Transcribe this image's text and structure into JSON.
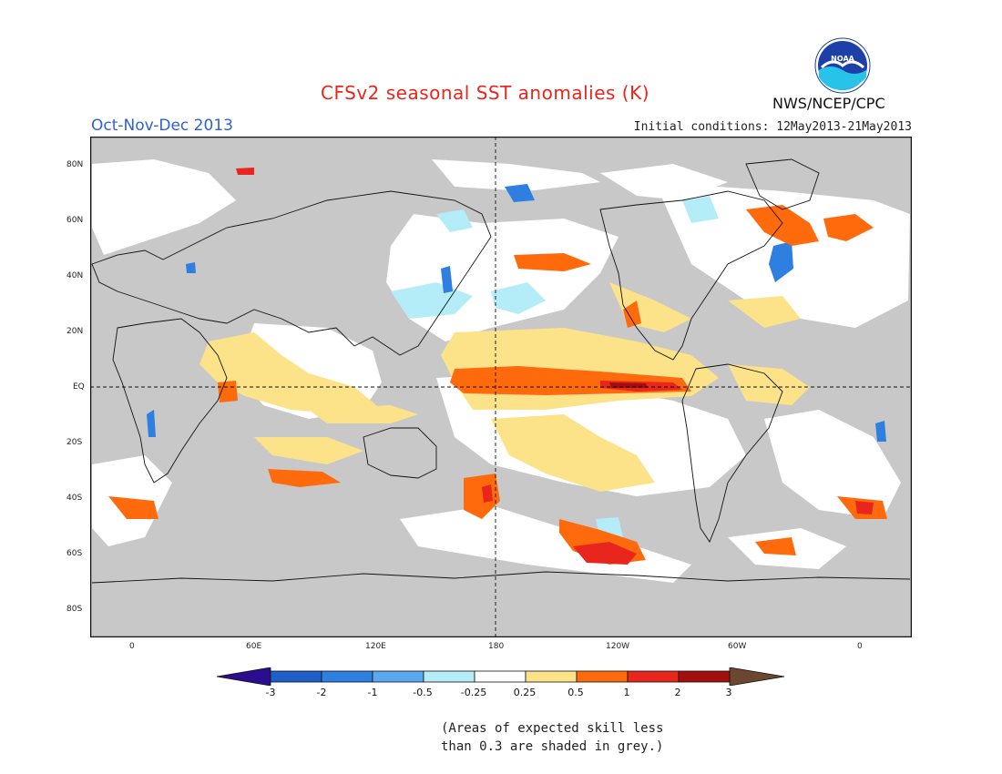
{
  "title": "CFSv2 seasonal SST anomalies (K)",
  "season": "Oct-Nov-Dec 2013",
  "initial_conditions": "Initial conditions: 12May2013-21May2013",
  "agency": "NWS/NCEP/CPC",
  "logo_text": "NOAA",
  "lat_labels": [
    "80N",
    "60N",
    "40N",
    "20N",
    "EQ",
    "20S",
    "40S",
    "60S",
    "80S"
  ],
  "lon_labels": [
    "0",
    "60E",
    "120E",
    "180",
    "120W",
    "60W",
    "0"
  ],
  "colorbar": {
    "ticks": [
      "-3",
      "-2",
      "-1",
      "-0.5",
      "-0.25",
      "0.25",
      "0.5",
      "1",
      "2",
      "3"
    ],
    "colors": [
      "#2b0e8f",
      "#1f5fc8",
      "#2f7fe0",
      "#5aa8ee",
      "#b4ecf7",
      "#ffffff",
      "#fce38a",
      "#ff6a0d",
      "#e8261d",
      "#a30f0f",
      "#6b4630"
    ]
  },
  "skill_mask_color": "#c8c8c8",
  "note_line1": "(Areas of expected skill less",
  "note_line2": "than 0.3 are shaded in grey.)"
}
